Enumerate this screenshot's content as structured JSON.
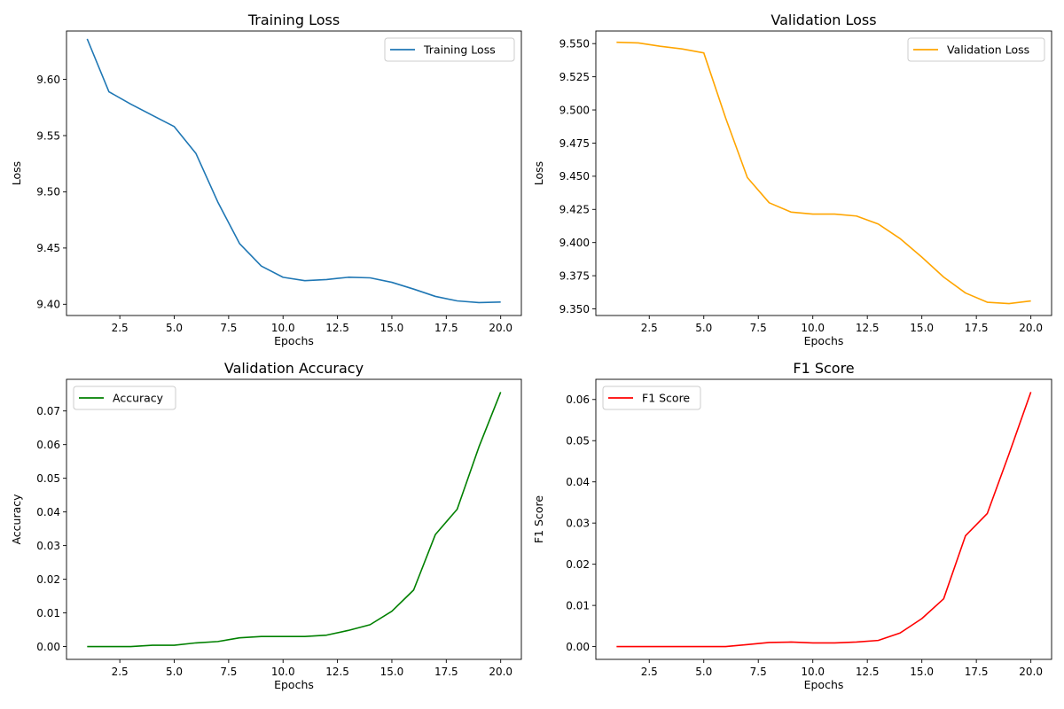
{
  "chart_data": [
    {
      "type": "line",
      "title": "Training Loss",
      "xlabel": "Epochs",
      "ylabel": "Loss",
      "xlim": [
        0.05,
        20.95
      ],
      "ylim": [
        9.39,
        9.643
      ],
      "xticks": [
        2.5,
        5.0,
        7.5,
        10.0,
        12.5,
        15.0,
        17.5,
        20.0
      ],
      "xtick_labels": [
        "2.5",
        "5.0",
        "7.5",
        "10.0",
        "12.5",
        "15.0",
        "17.5",
        "20.0"
      ],
      "yticks": [
        9.4,
        9.45,
        9.5,
        9.55,
        9.6
      ],
      "ytick_labels": [
        "9.40",
        "9.45",
        "9.50",
        "9.55",
        "9.60"
      ],
      "legend": "upper right",
      "grid": false,
      "x": [
        1,
        2,
        3,
        4,
        5,
        6,
        7,
        8,
        9,
        10,
        11,
        12,
        13,
        14,
        15,
        16,
        17,
        18,
        19,
        20
      ],
      "series": [
        {
          "name": "Training Loss",
          "color": "#1f77b4",
          "values": [
            9.636,
            9.589,
            9.578,
            9.568,
            9.558,
            9.534,
            9.491,
            9.454,
            9.434,
            9.424,
            9.421,
            9.422,
            9.424,
            9.4235,
            9.4195,
            9.4135,
            9.407,
            9.403,
            9.4015,
            9.402
          ]
        }
      ]
    },
    {
      "type": "line",
      "title": "Validation Loss",
      "xlabel": "Epochs",
      "ylabel": "Loss",
      "xlim": [
        0.05,
        20.95
      ],
      "ylim": [
        9.345,
        9.5595
      ],
      "xticks": [
        2.5,
        5.0,
        7.5,
        10.0,
        12.5,
        15.0,
        17.5,
        20.0
      ],
      "xtick_labels": [
        "2.5",
        "5.0",
        "7.5",
        "10.0",
        "12.5",
        "15.0",
        "17.5",
        "20.0"
      ],
      "yticks": [
        9.35,
        9.375,
        9.4,
        9.425,
        9.45,
        9.475,
        9.5,
        9.525,
        9.55
      ],
      "ytick_labels": [
        "9.350",
        "9.375",
        "9.400",
        "9.425",
        "9.450",
        "9.475",
        "9.500",
        "9.525",
        "9.550"
      ],
      "legend": "upper right",
      "grid": false,
      "x": [
        1,
        2,
        3,
        4,
        5,
        6,
        7,
        8,
        9,
        10,
        11,
        12,
        13,
        14,
        15,
        16,
        17,
        18,
        19,
        20
      ],
      "series": [
        {
          "name": "Validation Loss",
          "color": "#ffa500",
          "values": [
            9.551,
            9.5505,
            9.548,
            9.546,
            9.543,
            9.494,
            9.449,
            9.43,
            9.423,
            9.4215,
            9.4215,
            9.42,
            9.414,
            9.403,
            9.389,
            9.374,
            9.362,
            9.355,
            9.354,
            9.356
          ]
        }
      ]
    },
    {
      "type": "line",
      "title": "Validation Accuracy",
      "xlabel": "Epochs",
      "ylabel": "Accuracy",
      "xlim": [
        0.05,
        20.95
      ],
      "ylim": [
        -0.0038,
        0.0794
      ],
      "xticks": [
        2.5,
        5.0,
        7.5,
        10.0,
        12.5,
        15.0,
        17.5,
        20.0
      ],
      "xtick_labels": [
        "2.5",
        "5.0",
        "7.5",
        "10.0",
        "12.5",
        "15.0",
        "17.5",
        "20.0"
      ],
      "yticks": [
        0.0,
        0.01,
        0.02,
        0.03,
        0.04,
        0.05,
        0.06,
        0.07
      ],
      "ytick_labels": [
        "0.00",
        "0.01",
        "0.02",
        "0.03",
        "0.04",
        "0.05",
        "0.06",
        "0.07"
      ],
      "legend": "upper left",
      "grid": false,
      "x": [
        1,
        2,
        3,
        4,
        5,
        6,
        7,
        8,
        9,
        10,
        11,
        12,
        13,
        14,
        15,
        16,
        17,
        18,
        19,
        20
      ],
      "series": [
        {
          "name": "Accuracy",
          "color": "#008000",
          "values": [
            0.0,
            0.0,
            0.0,
            0.0004,
            0.0004,
            0.0011,
            0.0015,
            0.0026,
            0.003,
            0.003,
            0.003,
            0.0034,
            0.0048,
            0.0065,
            0.0105,
            0.0168,
            0.0333,
            0.0408,
            0.0593,
            0.0756
          ]
        }
      ]
    },
    {
      "type": "line",
      "title": "F1 Score",
      "xlabel": "Epochs",
      "ylabel": "F1 Score",
      "xlim": [
        0.05,
        20.95
      ],
      "ylim": [
        -0.0031,
        0.0649
      ],
      "xticks": [
        2.5,
        5.0,
        7.5,
        10.0,
        12.5,
        15.0,
        17.5,
        20.0
      ],
      "xtick_labels": [
        "2.5",
        "5.0",
        "7.5",
        "10.0",
        "12.5",
        "15.0",
        "17.5",
        "20.0"
      ],
      "yticks": [
        0.0,
        0.01,
        0.02,
        0.03,
        0.04,
        0.05,
        0.06
      ],
      "ytick_labels": [
        "0.00",
        "0.01",
        "0.02",
        "0.03",
        "0.04",
        "0.05",
        "0.06"
      ],
      "legend": "upper left",
      "grid": false,
      "x": [
        1,
        2,
        3,
        4,
        5,
        6,
        7,
        8,
        9,
        10,
        11,
        12,
        13,
        14,
        15,
        16,
        17,
        18,
        19,
        20
      ],
      "series": [
        {
          "name": "F1 Score",
          "color": "#ff0000",
          "values": [
            0.0,
            0.0,
            0.0,
            0.0,
            0.0,
            0.0,
            0.0005,
            0.001,
            0.0011,
            0.0009,
            0.0009,
            0.0011,
            0.0015,
            0.0033,
            0.0068,
            0.0116,
            0.0269,
            0.0323,
            0.0468,
            0.0618
          ]
        }
      ]
    }
  ]
}
